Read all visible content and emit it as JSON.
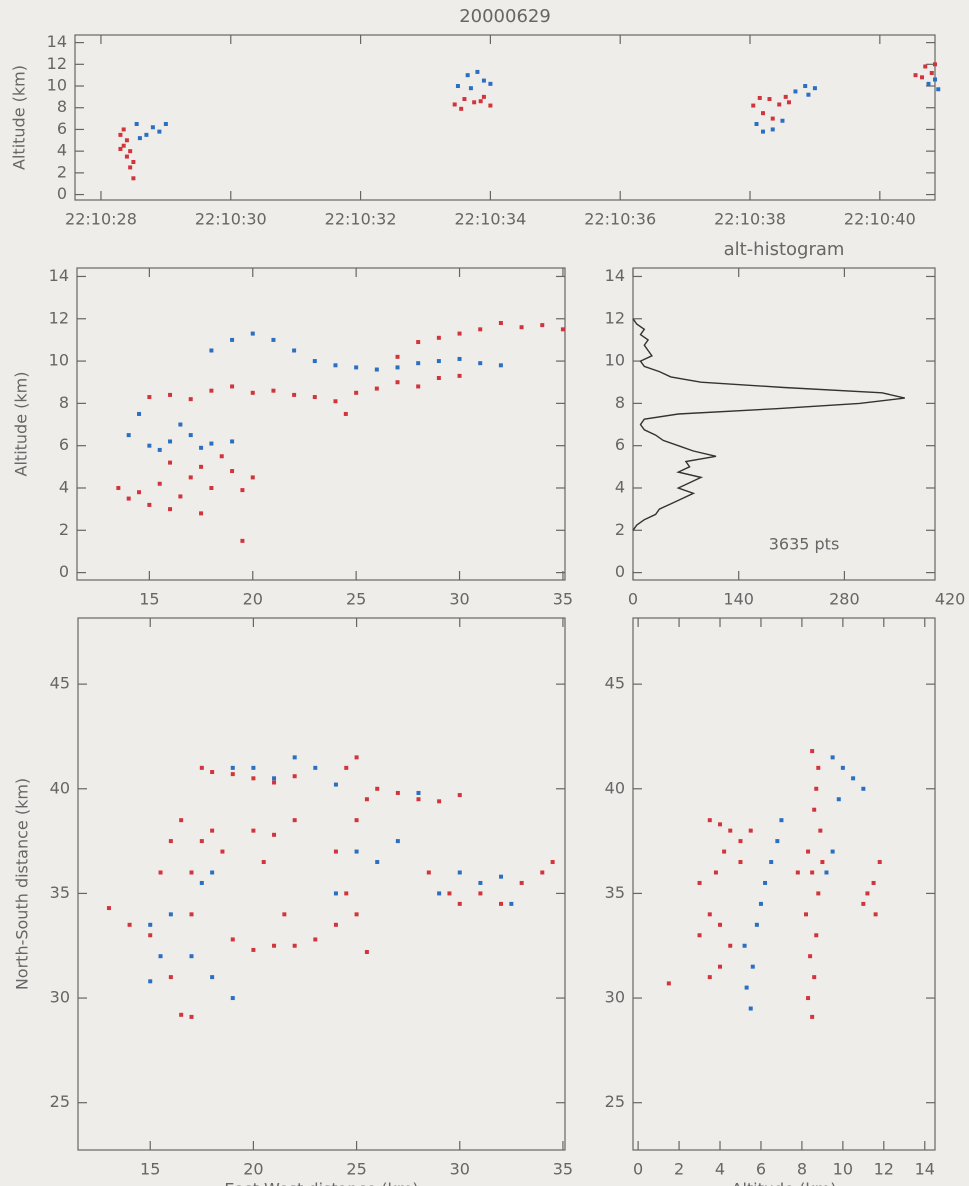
{
  "chart_data": [
    {
      "type": "scatter",
      "title": "20000629",
      "ylabel": "Altitude (km)",
      "xlim": [
        27.6,
        40.85
      ],
      "ylim": [
        -0.5,
        14.7
      ],
      "xticks": [
        {
          "value": 28,
          "label": "22:10:28"
        },
        {
          "value": 30,
          "label": "22:10:30"
        },
        {
          "value": 32,
          "label": "22:10:32"
        },
        {
          "value": 34,
          "label": "22:10:34"
        },
        {
          "value": 36,
          "label": "22:10:36"
        },
        {
          "value": 38,
          "label": "22:10:38"
        },
        {
          "value": 40,
          "label": "22:10:40"
        }
      ],
      "yticks": [
        0,
        2,
        4,
        6,
        8,
        10,
        12,
        14
      ],
      "series": [
        {
          "color": "#d2343c",
          "x": [
            28.3,
            28.35,
            28.4,
            28.45,
            28.5,
            28.35,
            28.45,
            28.5,
            28.4,
            28.3,
            33.45,
            33.6,
            33.75,
            33.9,
            34.0,
            33.55,
            33.85,
            38.05,
            38.2,
            38.3,
            38.45,
            38.55,
            38.15,
            38.35,
            38.6,
            40.55,
            40.7,
            40.8,
            40.65,
            40.85
          ],
          "y": [
            5.5,
            4.5,
            3.5,
            2.5,
            1.5,
            6,
            4,
            3,
            5,
            4.2,
            8.3,
            8.8,
            8.5,
            9,
            8.2,
            7.9,
            8.6,
            8.2,
            7.5,
            8.8,
            8.3,
            9,
            8.9,
            7,
            8.5,
            11,
            11.8,
            11.2,
            10.8,
            12
          ]
        },
        {
          "color": "#2a6fc2",
          "x": [
            28.55,
            28.7,
            28.8,
            28.9,
            28.6,
            29.0,
            33.5,
            33.65,
            33.8,
            33.9,
            34.0,
            33.7,
            38.1,
            38.2,
            38.35,
            38.5,
            38.7,
            38.85,
            39.0,
            38.9,
            40.75,
            40.9,
            40.85
          ],
          "y": [
            6.5,
            5.5,
            6.2,
            5.8,
            5.2,
            6.5,
            10,
            11,
            11.3,
            10.5,
            10.2,
            9.8,
            6.5,
            5.8,
            6,
            6.8,
            9.5,
            10,
            9.8,
            9.2,
            10.2,
            9.7,
            10.6
          ]
        }
      ]
    },
    {
      "type": "scatter",
      "ylabel": "Altitude (km)",
      "xlim": [
        11.5,
        35.1
      ],
      "ylim": [
        -0.35,
        14.4
      ],
      "xticks": [
        15,
        20,
        25,
        30,
        35
      ],
      "yticks": [
        0,
        2,
        4,
        6,
        8,
        10,
        12,
        14
      ],
      "series": [
        {
          "color": "#d2343c",
          "x": [
            13.5,
            14,
            14.5,
            15,
            15.5,
            16,
            16.5,
            17,
            17.5,
            18,
            18.5,
            19,
            19.5,
            20,
            17.5,
            16,
            19.5,
            15,
            16,
            17,
            18,
            19,
            20,
            21,
            22,
            23,
            24,
            24.5,
            25,
            26,
            27,
            28,
            29,
            30,
            27,
            28,
            29,
            30,
            31,
            32,
            33,
            34,
            35
          ],
          "y": [
            4,
            3.5,
            3.8,
            3.2,
            4.2,
            3,
            3.6,
            4.5,
            5,
            4,
            5.5,
            4.8,
            3.9,
            4.5,
            2.8,
            5.2,
            1.5,
            8.3,
            8.4,
            8.2,
            8.6,
            8.8,
            8.5,
            8.6,
            8.4,
            8.3,
            8.1,
            7.5,
            8.5,
            8.7,
            9,
            8.8,
            9.2,
            9.3,
            10.2,
            10.9,
            11.1,
            11.3,
            11.5,
            11.8,
            11.6,
            11.7,
            11.5
          ]
        },
        {
          "color": "#2a6fc2",
          "x": [
            14,
            15,
            15.5,
            16,
            16.5,
            17,
            17.5,
            18,
            19,
            14.5,
            18,
            19,
            20,
            21,
            22,
            23,
            24,
            25,
            26,
            27,
            28,
            29,
            30,
            31,
            32
          ],
          "y": [
            6.5,
            6,
            5.8,
            6.2,
            7,
            6.5,
            5.9,
            6.1,
            6.2,
            7.5,
            10.5,
            11,
            11.3,
            11,
            10.5,
            10,
            9.8,
            9.7,
            9.6,
            9.7,
            9.9,
            10,
            10.1,
            9.9,
            9.8
          ]
        }
      ]
    },
    {
      "type": "line",
      "title": "alt-histogram",
      "annotation": "3635 pts",
      "xlim": [
        0,
        400
      ],
      "ylim": [
        -0.35,
        14.4
      ],
      "xticks": [
        0,
        140,
        280,
        420
      ],
      "yticks": [
        0,
        2,
        4,
        6,
        8,
        10,
        12,
        14
      ],
      "series": [
        {
          "color": "#333333",
          "x": [
            0,
            5,
            15,
            30,
            35,
            50,
            65,
            80,
            60,
            75,
            90,
            60,
            75,
            70,
            110,
            80,
            60,
            40,
            30,
            15,
            10,
            15,
            60,
            190,
            300,
            360,
            330,
            200,
            90,
            50,
            35,
            15,
            10,
            25,
            20,
            15,
            20,
            10,
            15,
            5,
            0
          ],
          "y": [
            2,
            2.25,
            2.5,
            2.75,
            3,
            3.25,
            3.5,
            3.75,
            4,
            4.25,
            4.5,
            4.75,
            5,
            5.25,
            5.5,
            5.75,
            6,
            6.25,
            6.5,
            6.75,
            7,
            7.25,
            7.5,
            7.75,
            8,
            8.25,
            8.5,
            8.75,
            9,
            9.25,
            9.5,
            9.75,
            10,
            10.25,
            10.5,
            10.75,
            11,
            11.25,
            11.5,
            11.75,
            12
          ]
        }
      ]
    },
    {
      "type": "scatter",
      "xlabel": "East-West distance (km)",
      "ylabel": "North-South distance (km)",
      "xlim": [
        11.5,
        35.1
      ],
      "ylim": [
        22.74,
        48.16
      ],
      "xticks": [
        15,
        20,
        25,
        30,
        35
      ],
      "yticks": [
        25,
        30,
        35,
        40,
        45
      ],
      "series": [
        {
          "color": "#d2343c",
          "x": [
            13,
            14,
            15,
            16,
            16.5,
            17,
            15.5,
            16,
            16.5,
            17,
            17.5,
            18,
            18.5,
            17,
            17.5,
            18,
            19,
            20,
            21,
            22,
            20,
            20.5,
            21,
            22,
            21.5,
            21,
            20,
            19,
            22,
            23,
            24,
            24.5,
            24,
            25,
            25.5,
            26,
            27,
            28,
            29,
            30,
            25,
            24.5,
            25.5,
            25,
            28.5,
            29.5,
            30,
            31,
            32,
            33,
            34,
            34.5
          ],
          "y": [
            34.3,
            33.5,
            33,
            31,
            29.2,
            29.1,
            36,
            37.5,
            38.5,
            36,
            37.5,
            38,
            37,
            34,
            41,
            40.8,
            40.7,
            40.5,
            40.3,
            40.6,
            38,
            36.5,
            37.8,
            38.5,
            34,
            32.5,
            32.3,
            32.8,
            32.5,
            32.8,
            33.5,
            35,
            37,
            38.5,
            39.5,
            40,
            39.8,
            39.5,
            39.4,
            39.7,
            41.5,
            41,
            32.2,
            34,
            36,
            35,
            34.5,
            35,
            34.5,
            35.5,
            36,
            36.5
          ]
        },
        {
          "color": "#2a6fc2",
          "x": [
            15,
            15.5,
            15,
            16,
            17,
            18,
            19,
            17.5,
            18,
            19,
            20,
            21,
            22,
            23,
            24,
            25,
            26,
            27,
            28,
            29,
            30,
            31,
            32,
            32.5,
            24
          ],
          "y": [
            33.5,
            32,
            30.8,
            34,
            32,
            31,
            30,
            35.5,
            36,
            41,
            41,
            40.5,
            41.5,
            41,
            40.2,
            37,
            36.5,
            37.5,
            39.8,
            35,
            36,
            35.5,
            35.8,
            34.5,
            35
          ]
        }
      ]
    },
    {
      "type": "scatter",
      "xlabel": "Altitude (km)",
      "xlim": [
        -0.25,
        14.5
      ],
      "ylim": [
        22.74,
        48.16
      ],
      "xticks": [
        0,
        2,
        4,
        6,
        8,
        10,
        12,
        14
      ],
      "yticks": [
        25,
        30,
        35,
        40,
        45
      ],
      "series": [
        {
          "color": "#d2343c",
          "x": [
            8.5,
            8.3,
            8.6,
            8.4,
            8.7,
            8.2,
            8.8,
            8.5,
            8.3,
            8.9,
            8.6,
            8.7,
            8.8,
            8.5,
            7.8,
            9,
            3.5,
            4,
            4.5,
            5,
            5.5,
            5,
            4.2,
            3,
            3.5,
            4,
            4.5,
            3,
            3.8,
            4,
            3.5,
            1.5,
            11,
            11.5,
            11.8,
            11.2,
            11.6
          ],
          "y": [
            29.1,
            30,
            31,
            32,
            33,
            34,
            35,
            36,
            37,
            38,
            39,
            40,
            41,
            41.8,
            36,
            36.5,
            38.5,
            38.3,
            38,
            37.5,
            38,
            36.5,
            37,
            33,
            34,
            33.5,
            32.5,
            35.5,
            36,
            31.5,
            31,
            30.7,
            34.5,
            35.5,
            36.5,
            35,
            34
          ]
        },
        {
          "color": "#2a6fc2",
          "x": [
            5.5,
            5.3,
            5.6,
            5.2,
            5.8,
            6,
            6.2,
            6.5,
            6.8,
            7,
            9.5,
            10,
            10.5,
            11,
            9.8,
            9.5,
            9.2
          ],
          "y": [
            29.5,
            30.5,
            31.5,
            32.5,
            33.5,
            34.5,
            35.5,
            36.5,
            37.5,
            38.5,
            41.5,
            41,
            40.5,
            40,
            39.5,
            37,
            36
          ]
        }
      ]
    }
  ]
}
